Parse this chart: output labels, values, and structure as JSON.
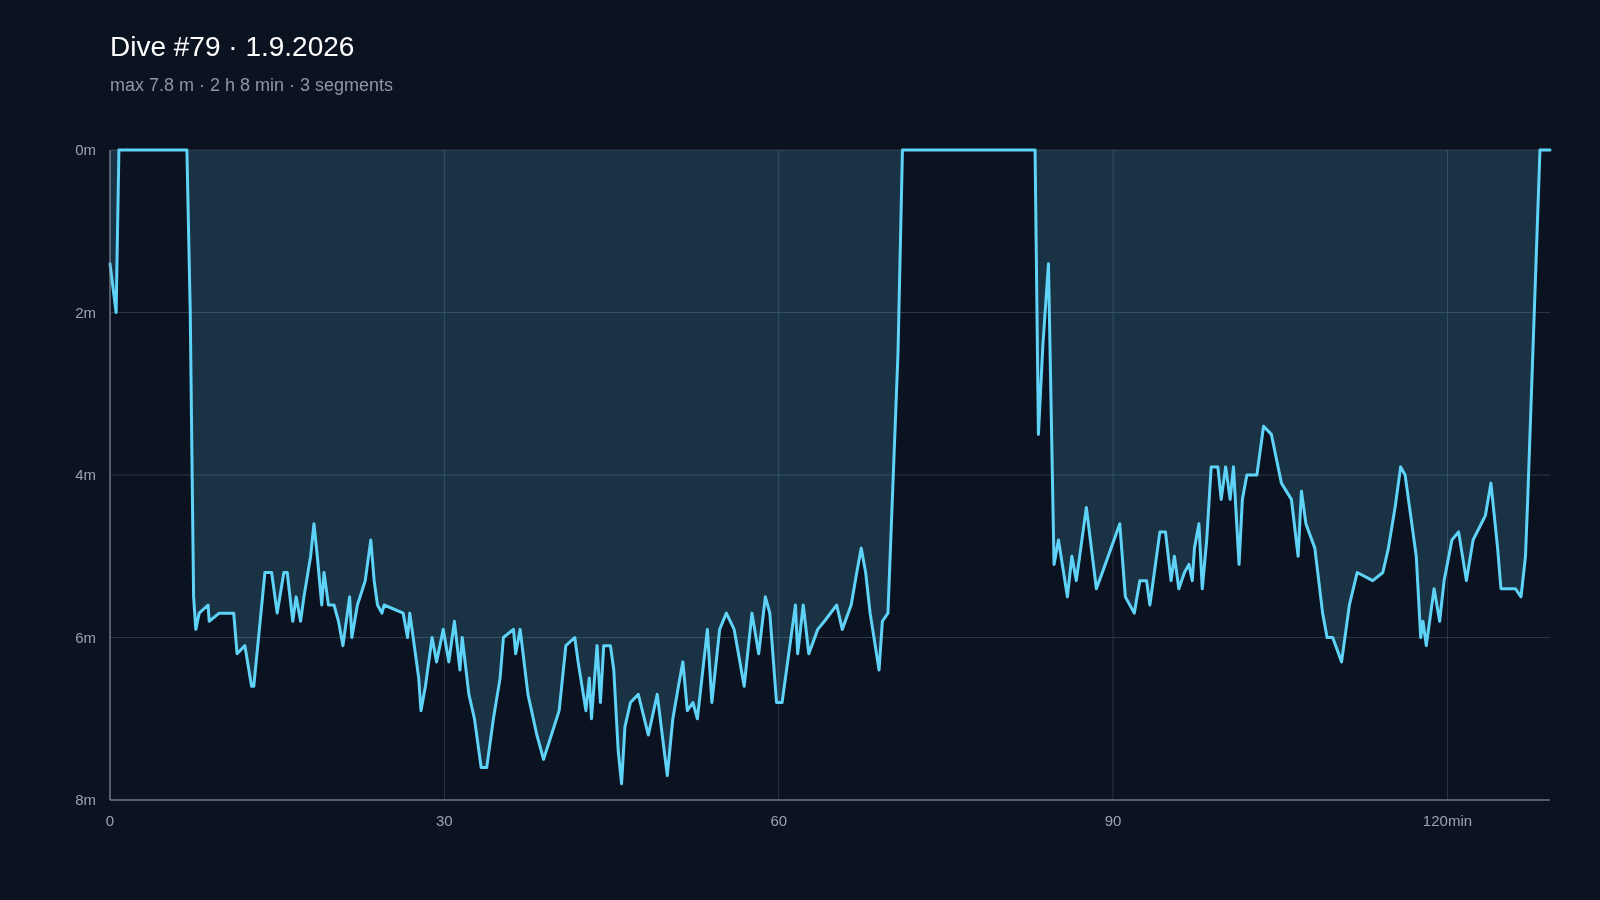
{
  "chart_data": {
    "type": "area",
    "title": "Dive #79 · 1.9.2026",
    "subtitle": "max 7.8 m · 2 h 8 min · 3 segments",
    "xlim": [
      0,
      129.2
    ],
    "xticks": [
      0,
      30,
      60,
      90,
      {
        "value": 120,
        "label": "120min"
      }
    ],
    "ylim": [
      8,
      0
    ],
    "yticks": [
      {
        "value": 0,
        "label": "0m"
      },
      {
        "value": 2,
        "label": "2m"
      },
      {
        "value": 4,
        "label": "4m"
      },
      {
        "value": 6,
        "label": "6m"
      },
      {
        "value": 8,
        "label": "8m"
      }
    ],
    "grid": true,
    "line_style": "solid",
    "series": [
      {
        "color": "#5fd3f7",
        "x": [
          0,
          0.55,
          0.8,
          6.9,
          7.2,
          7.5,
          7.7,
          8.0,
          8.8,
          8.9,
          9.8,
          11.1,
          11.4,
          12.1,
          12.7,
          12.9,
          13.4,
          13.9,
          14.5,
          15.0,
          15.6,
          15.9,
          16.4,
          16.7,
          17.1,
          17.4,
          18.0,
          18.3,
          18.6,
          19.0,
          19.2,
          19.6,
          20.1,
          20.5,
          20.9,
          21.5,
          21.7,
          22.2,
          22.9,
          23.4,
          23.7,
          24.0,
          24.4,
          24.6,
          26.3,
          26.7,
          26.9,
          27.7,
          27.9,
          28.3,
          28.9,
          29.3,
          29.9,
          30.4,
          30.9,
          31.4,
          31.6,
          32.2,
          32.7,
          33.3,
          33.8,
          34.4,
          35.0,
          35.3,
          36.2,
          36.4,
          36.8,
          37.5,
          38.3,
          38.9,
          39.6,
          40.3,
          40.9,
          41.7,
          42.0,
          42.7,
          43.0,
          43.2,
          43.7,
          44.0,
          44.3,
          44.9,
          45.2,
          45.6,
          45.9,
          46.2,
          46.7,
          47.4,
          48.3,
          49.1,
          50.0,
          50.5,
          51.0,
          51.4,
          51.8,
          52.3,
          52.7,
          53.6,
          54.0,
          54.7,
          55.3,
          56.0,
          56.9,
          57.6,
          58.2,
          58.8,
          59.2,
          59.8,
          60.3,
          60.8,
          61.5,
          61.7,
          62.2,
          62.7,
          63.5,
          64.1,
          65.2,
          65.7,
          66.5,
          67.0,
          67.4,
          67.8,
          68.2,
          69.0,
          69.3,
          69.8,
          70.7,
          71.1,
          83.0,
          83.3,
          83.7,
          84.2,
          84.7,
          85.1,
          85.9,
          86.3,
          86.7,
          87.6,
          88.5,
          89.3,
          90.6,
          91.1,
          91.9,
          92.4,
          93.0,
          93.3,
          94.2,
          94.7,
          95.2,
          95.5,
          95.9,
          96.4,
          96.8,
          97.1,
          97.3,
          97.7,
          98.0,
          98.4,
          98.8,
          99.4,
          99.7,
          100.1,
          100.5,
          100.8,
          101.3,
          101.6,
          102.0,
          102.5,
          102.9,
          103.5,
          104.2,
          105.1,
          106.0,
          106.6,
          106.9,
          107.3,
          108.1,
          108.8,
          109.2,
          109.7,
          110.5,
          111.2,
          111.9,
          113.3,
          114.2,
          114.7,
          115.3,
          115.8,
          116.2,
          116.7,
          117.2,
          117.6,
          117.8,
          118.1,
          118.8,
          119.3,
          119.7,
          120.4,
          121.0,
          121.7,
          122.3,
          123.4,
          123.9,
          124.5,
          124.8,
          126.1,
          126.6,
          127.0,
          127.2,
          128.3,
          129.2
        ],
        "values": [
          1.4,
          2.0,
          0,
          0,
          2.0,
          5.5,
          5.9,
          5.7,
          5.6,
          5.8,
          5.7,
          5.7,
          6.2,
          6.1,
          6.6,
          6.6,
          5.9,
          5.2,
          5.2,
          5.7,
          5.2,
          5.2,
          5.8,
          5.5,
          5.8,
          5.5,
          5.0,
          4.6,
          5.0,
          5.6,
          5.2,
          5.6,
          5.6,
          5.8,
          6.1,
          5.5,
          6.0,
          5.6,
          5.3,
          4.8,
          5.3,
          5.6,
          5.7,
          5.6,
          5.7,
          6.0,
          5.7,
          6.5,
          6.9,
          6.6,
          6.0,
          6.3,
          5.9,
          6.3,
          5.8,
          6.4,
          6.0,
          6.7,
          7.0,
          7.6,
          7.6,
          7.0,
          6.5,
          6.0,
          5.9,
          6.2,
          5.9,
          6.7,
          7.2,
          7.5,
          7.2,
          6.9,
          6.1,
          6.0,
          6.3,
          6.9,
          6.5,
          7.0,
          6.1,
          6.8,
          6.1,
          6.1,
          6.4,
          7.4,
          7.8,
          7.1,
          6.8,
          6.7,
          7.2,
          6.7,
          7.7,
          7.0,
          6.6,
          6.3,
          6.9,
          6.8,
          7.0,
          5.9,
          6.8,
          5.9,
          5.7,
          5.9,
          6.6,
          5.7,
          6.2,
          5.5,
          5.7,
          6.8,
          6.8,
          6.3,
          5.6,
          6.2,
          5.6,
          6.2,
          5.9,
          5.8,
          5.6,
          5.9,
          5.6,
          5.2,
          4.9,
          5.2,
          5.7,
          6.4,
          5.8,
          5.7,
          2.5,
          0,
          0,
          3.5,
          2.4,
          1.4,
          5.1,
          4.8,
          5.5,
          5.0,
          5.3,
          4.4,
          5.4,
          5.1,
          4.6,
          5.5,
          5.7,
          5.3,
          5.3,
          5.6,
          4.7,
          4.7,
          5.3,
          5.0,
          5.4,
          5.2,
          5.1,
          5.3,
          4.9,
          4.6,
          5.4,
          4.8,
          3.9,
          3.9,
          4.3,
          3.9,
          4.3,
          3.9,
          5.1,
          4.3,
          4.0,
          4.0,
          4.0,
          3.4,
          3.5,
          4.1,
          4.3,
          5.0,
          4.2,
          4.6,
          4.9,
          5.7,
          6.0,
          6.0,
          6.3,
          5.6,
          5.2,
          5.3,
          5.2,
          4.9,
          4.4,
          3.9,
          4.0,
          4.5,
          5.0,
          6.0,
          5.8,
          6.1,
          5.4,
          5.8,
          5.3,
          4.8,
          4.7,
          5.3,
          4.8,
          4.5,
          4.1,
          4.9,
          5.4,
          5.4,
          5.5,
          5.0,
          4.3,
          0,
          0
        ]
      }
    ]
  }
}
